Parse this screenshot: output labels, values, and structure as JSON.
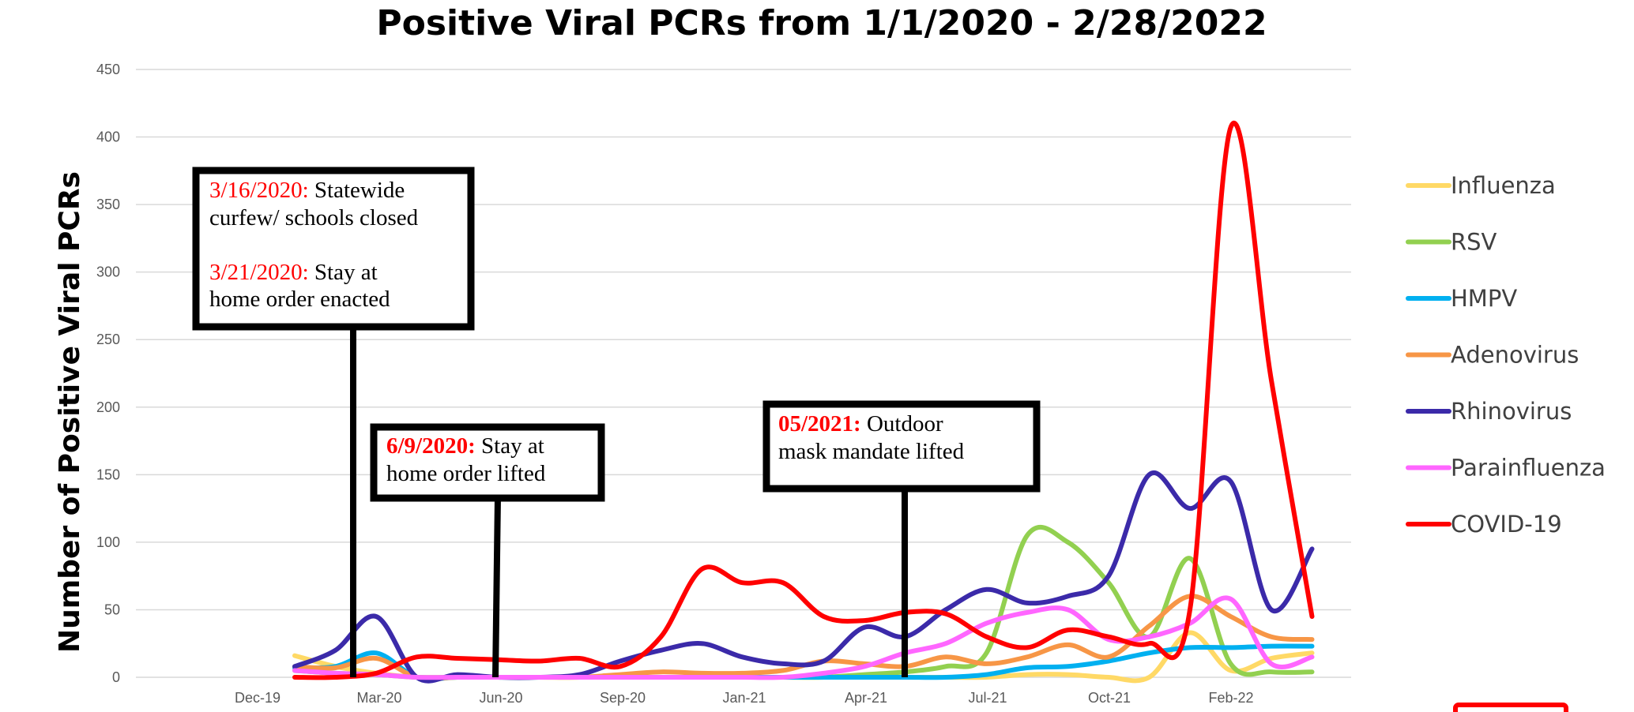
{
  "chart_data": {
    "type": "line",
    "title": "Positive Viral PCRs from 1/1/2020 - 2/28/2022",
    "ylabel": "Number of Positive Viral PCRs",
    "xlabel": "",
    "ylim": [
      0,
      450
    ],
    "yticks": [
      0,
      50,
      100,
      150,
      200,
      250,
      300,
      350,
      400,
      450
    ],
    "xticks": [
      "Dec-19",
      "Mar-20",
      "Jun-20",
      "Sep-20",
      "Jan-21",
      "Apr-21",
      "Jul-21",
      "Oct-21",
      "Feb-22"
    ],
    "grid": true,
    "legend_position": "right",
    "x": [
      "Jan-20",
      "Feb-20",
      "Mar-20",
      "Apr-20",
      "May-20",
      "Jun-20",
      "Jul-20",
      "Aug-20",
      "Sep-20",
      "Oct-20",
      "Nov-20",
      "Dec-20",
      "Jan-21",
      "Feb-21",
      "Mar-21",
      "Apr-21",
      "May-21",
      "Jun-21",
      "Jul-21",
      "Aug-21",
      "Sep-21",
      "Oct-21",
      "Nov-21",
      "Dec-21",
      "Jan-22",
      "Feb-22"
    ],
    "series": [
      {
        "name": "Influenza",
        "color": "#ffd966",
        "values": [
          16,
          8,
          3,
          0,
          0,
          0,
          0,
          0,
          0,
          0,
          0,
          0,
          0,
          0,
          0,
          0,
          0,
          0,
          2,
          2,
          0,
          0,
          33,
          5,
          14,
          18
        ]
      },
      {
        "name": "RSV",
        "color": "#92d050",
        "values": [
          5,
          3,
          2,
          0,
          0,
          0,
          0,
          0,
          0,
          0,
          0,
          0,
          0,
          0,
          2,
          4,
          8,
          18,
          105,
          100,
          70,
          30,
          88,
          10,
          4,
          4
        ]
      },
      {
        "name": "HMPV",
        "color": "#00b0f0",
        "values": [
          7,
          8,
          18,
          0,
          0,
          0,
          0,
          0,
          0,
          0,
          0,
          0,
          0,
          0,
          0,
          0,
          0,
          2,
          7,
          8,
          12,
          18,
          22,
          22,
          23,
          23
        ]
      },
      {
        "name": "Adenovirus",
        "color": "#f79646",
        "values": [
          8,
          7,
          14,
          0,
          0,
          0,
          0,
          0,
          2,
          4,
          3,
          3,
          5,
          12,
          10,
          8,
          15,
          10,
          15,
          24,
          15,
          38,
          60,
          45,
          30,
          28
        ]
      },
      {
        "name": "Rhinovirus",
        "color": "#3b2aa9",
        "values": [
          8,
          20,
          45,
          0,
          2,
          0,
          0,
          2,
          12,
          20,
          25,
          15,
          10,
          12,
          37,
          30,
          50,
          65,
          55,
          60,
          75,
          150,
          125,
          145,
          50,
          95
        ]
      },
      {
        "name": "Parainfluenza",
        "color": "#ff66ff",
        "values": [
          5,
          3,
          2,
          0,
          0,
          0,
          0,
          0,
          0,
          0,
          0,
          0,
          0,
          3,
          8,
          18,
          25,
          40,
          48,
          50,
          28,
          30,
          40,
          58,
          10,
          15
        ]
      },
      {
        "name": "COVID-19",
        "color": "#ff0000",
        "values": [
          0,
          0,
          3,
          15,
          14,
          13,
          12,
          14,
          8,
          30,
          80,
          70,
          70,
          45,
          42,
          48,
          47,
          30,
          22,
          35,
          30,
          25,
          50,
          407,
          220,
          45
        ]
      }
    ]
  },
  "annotations": [
    {
      "date1": "3/16/2020:",
      "text1": " Statewide",
      "line2": "curfew/ schools closed",
      "date2": "3/21/2020:",
      "text2": " Stay at",
      "line4": "home order enacted"
    },
    {
      "date": "6/9/2020:",
      "text": " Stay at",
      "line2": "home order lifted"
    },
    {
      "date": "05/2021:",
      "text": " Outdoor",
      "line2": "mask mandate lifted"
    }
  ]
}
